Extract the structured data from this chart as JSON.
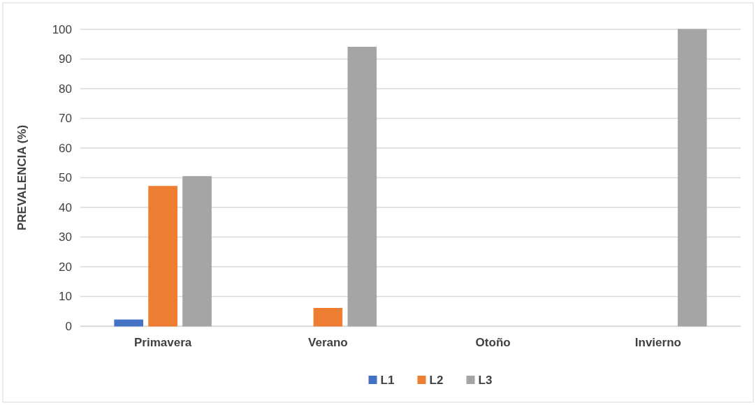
{
  "chart_data": {
    "type": "bar",
    "ylabel": "PREVALENCIA (%)",
    "categories": [
      "Primavera",
      "Verano",
      "Otoño",
      "Invierno"
    ],
    "series": [
      {
        "name": "L1",
        "color": "#4472c4",
        "values": [
          2.1,
          0,
          0,
          0
        ]
      },
      {
        "name": "L2",
        "color": "#ed7d31",
        "values": [
          47.1,
          6,
          0,
          0
        ]
      },
      {
        "name": "L3",
        "color": "#a5a5a5",
        "values": [
          50.4,
          94,
          0,
          100
        ]
      }
    ],
    "ylim": [
      0,
      100
    ],
    "yticks": [
      0,
      10,
      20,
      30,
      40,
      50,
      60,
      70,
      80,
      90,
      100
    ],
    "grid": "y",
    "legend": "bottom"
  }
}
